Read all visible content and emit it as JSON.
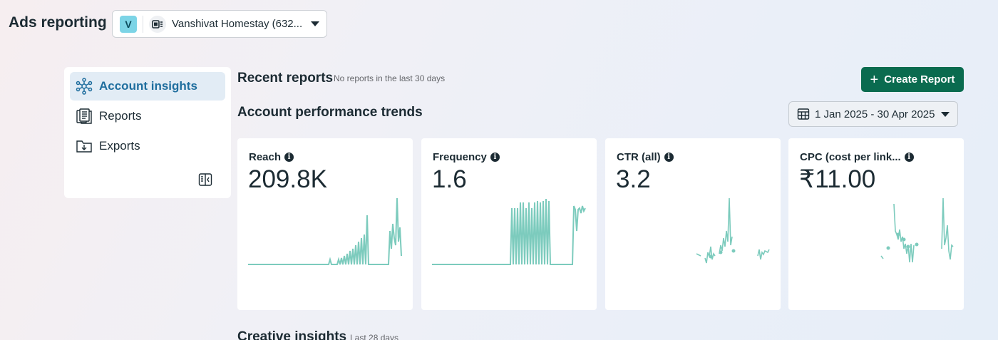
{
  "header": {
    "title": "Ads reporting",
    "account_avatar": "V",
    "account_name": "Vanshivat Homestay (632..."
  },
  "sidebar": {
    "items": [
      {
        "label": "Account insights",
        "icon": "network-icon",
        "active": true
      },
      {
        "label": "Reports",
        "icon": "reports-icon",
        "active": false
      },
      {
        "label": "Exports",
        "icon": "export-folder-icon",
        "active": false
      }
    ]
  },
  "recent": {
    "title": "Recent reports",
    "subtitle": "No reports in the last 30 days",
    "create_label": "Create Report"
  },
  "performance": {
    "title": "Account performance trends",
    "date_range": "1 Jan 2025 - 30 Apr 2025"
  },
  "cards": [
    {
      "label": "Reach",
      "value": "209.8K"
    },
    {
      "label": "Frequency",
      "value": "1.6"
    },
    {
      "label": "CTR (all)",
      "value": "3.2"
    },
    {
      "label": "CPC (cost per link...",
      "value": "₹11.00"
    }
  ],
  "creative": {
    "title": "Creative insights",
    "subtitle": "Last 28 days"
  },
  "colors": {
    "accent": "#0a6b4f",
    "sparkline": "#7ccbbd",
    "active_nav": "#1f6e9e"
  }
}
